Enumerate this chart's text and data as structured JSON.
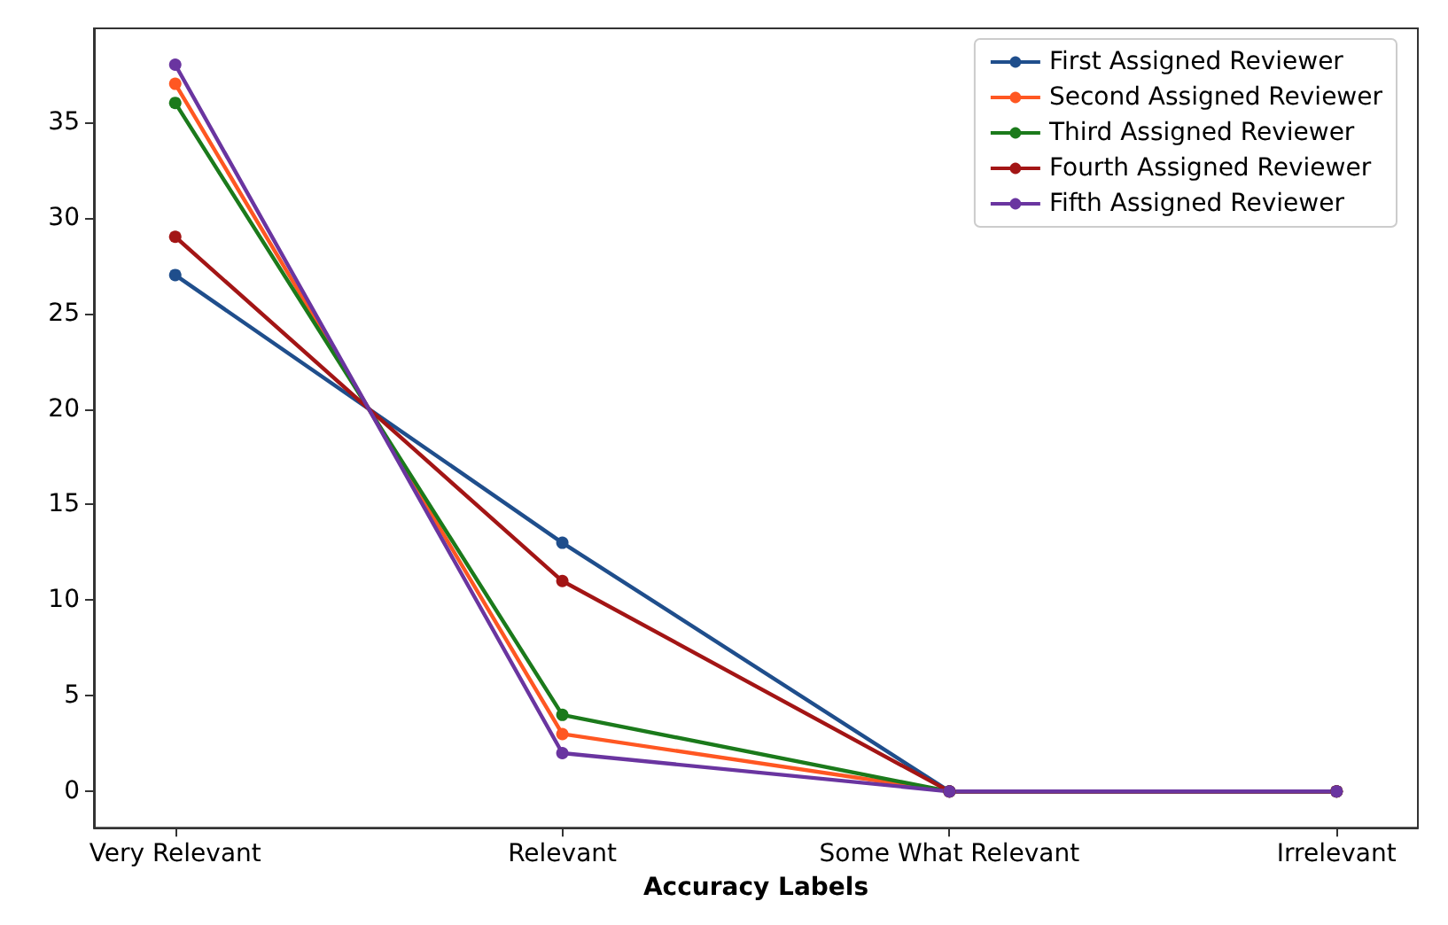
{
  "chart_data": {
    "type": "line",
    "xlabel": "Accuracy Labels",
    "categories": [
      "Very Relevant",
      "Relevant",
      "Some What Relevant",
      "Irrelevant"
    ],
    "series": [
      {
        "name": "First Assigned Reviewer",
        "color": "#1f4e8c",
        "values": [
          27,
          13,
          0,
          0
        ]
      },
      {
        "name": "Second Assigned Reviewer",
        "color": "#ff5722",
        "values": [
          37,
          3,
          0,
          0
        ]
      },
      {
        "name": "Third Assigned Reviewer",
        "color": "#1b7a1b",
        "values": [
          36,
          4,
          0,
          0
        ]
      },
      {
        "name": "Fourth Assigned Reviewer",
        "color": "#a31515",
        "values": [
          29,
          11,
          0,
          0
        ]
      },
      {
        "name": "Fifth Assigned Reviewer",
        "color": "#6a35a0",
        "values": [
          38,
          2,
          0,
          0
        ]
      }
    ],
    "ylim": [
      -1.9,
      39.9
    ],
    "yticks": [
      0,
      5,
      10,
      15,
      20,
      25,
      30,
      35
    ],
    "grid": false,
    "legend": "top right",
    "marker": "circle",
    "line_style": "solid"
  }
}
